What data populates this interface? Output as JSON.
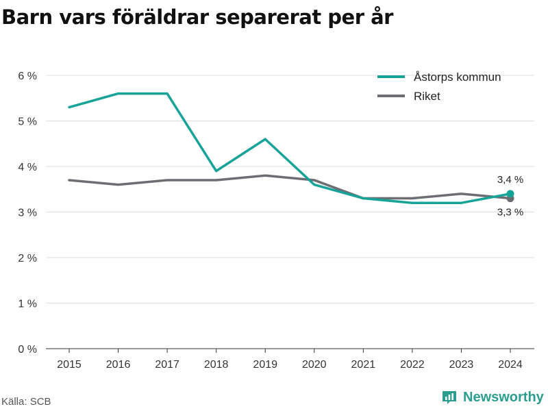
{
  "title": "Barn vars föräldrar separerat per år",
  "source": "Källa: SCB",
  "brand": "Newsworthy",
  "colors": {
    "kommun": "#17a398",
    "riket": "#6d6e73",
    "grid": "#dddddd",
    "brand": "#2a9d8f"
  },
  "chart_data": {
    "type": "line",
    "categories": [
      "2015",
      "2016",
      "2017",
      "2018",
      "2019",
      "2020",
      "2021",
      "2022",
      "2023",
      "2024"
    ],
    "series": [
      {
        "name": "Åstorps kommun",
        "values": [
          5.3,
          5.6,
          5.6,
          3.9,
          4.6,
          3.6,
          3.3,
          3.2,
          3.2,
          3.4
        ],
        "end_label": "3,4 %"
      },
      {
        "name": "Riket",
        "values": [
          3.7,
          3.6,
          3.7,
          3.7,
          3.8,
          3.7,
          3.3,
          3.3,
          3.4,
          3.3
        ],
        "end_label": "3,3 %"
      }
    ],
    "ylim": [
      0,
      6
    ],
    "yticks": [
      0,
      1,
      2,
      3,
      4,
      5,
      6
    ],
    "ytick_labels": [
      "0 %",
      "1 %",
      "2 %",
      "3 %",
      "4 %",
      "5 %",
      "6 %"
    ],
    "grid": true,
    "legend_position": "top-right"
  }
}
